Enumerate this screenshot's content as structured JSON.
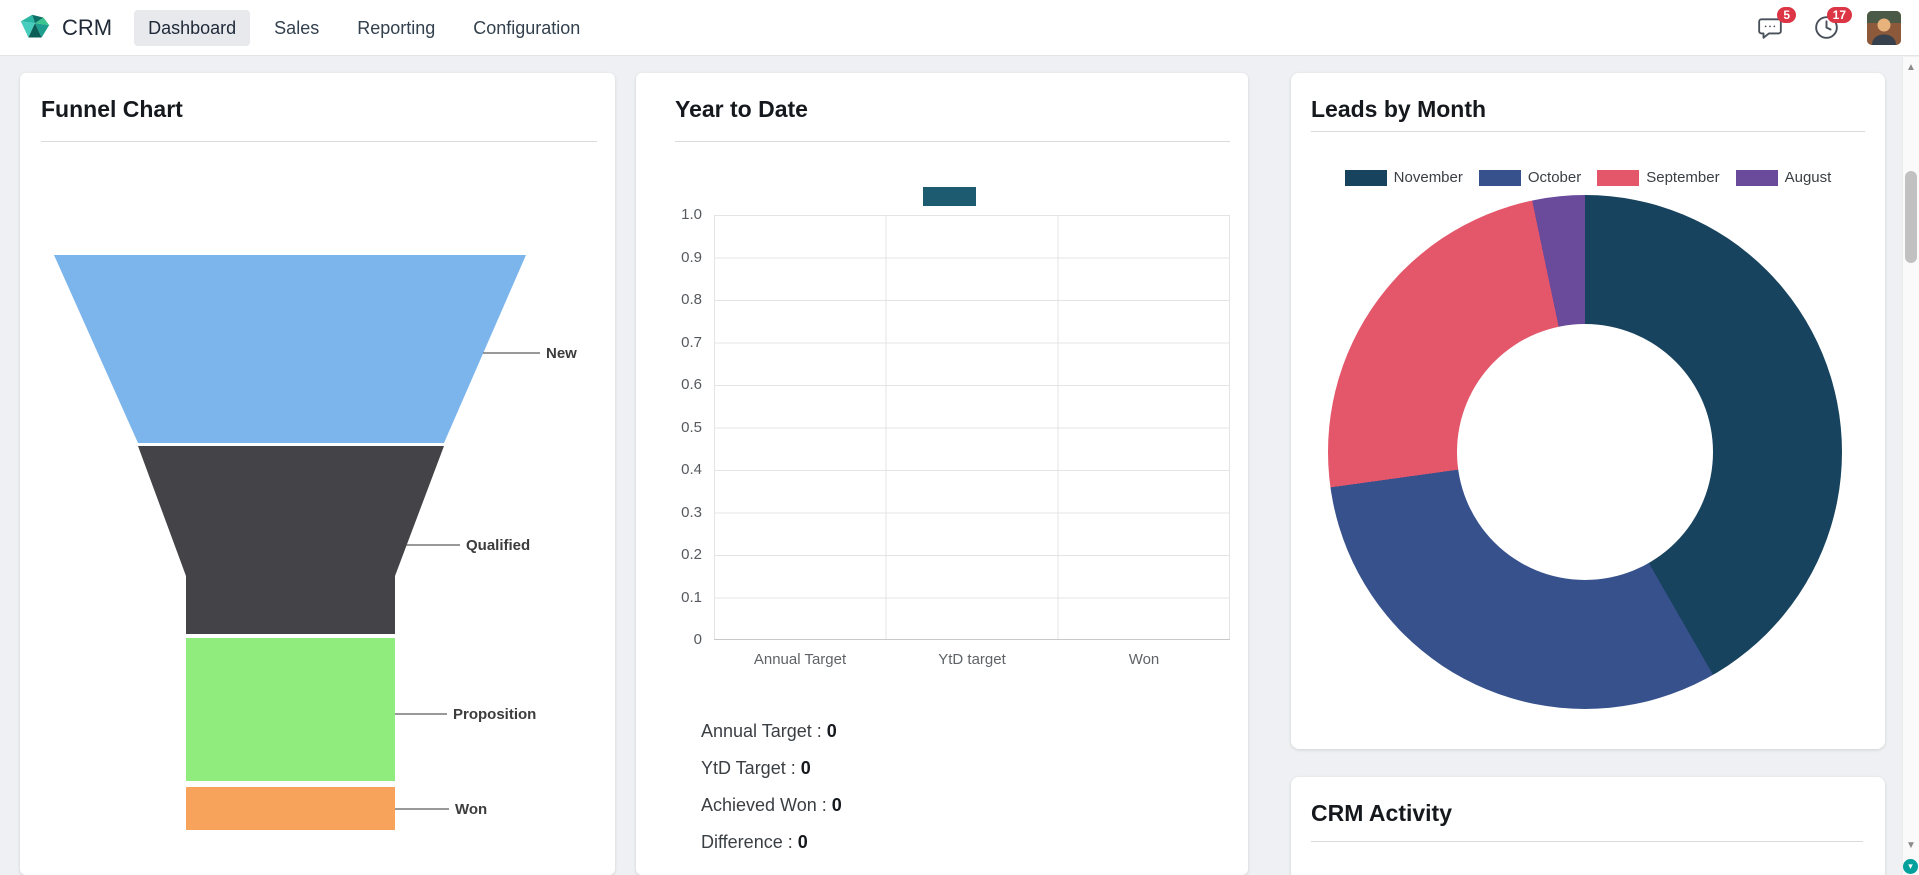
{
  "navbar": {
    "app_name": "CRM",
    "menu": [
      {
        "label": "Dashboard",
        "active": true
      },
      {
        "label": "Sales",
        "active": false
      },
      {
        "label": "Reporting",
        "active": false
      },
      {
        "label": "Configuration",
        "active": false
      }
    ],
    "icons": {
      "messages": {
        "icon": "chat-bubble",
        "badge": "5"
      },
      "activities": {
        "icon": "clock",
        "badge": "17"
      }
    }
  },
  "panels": {
    "funnel": {
      "title": "Funnel Chart"
    },
    "ytd": {
      "title": "Year to Date",
      "stats": [
        {
          "label": "Annual Target :",
          "value": "0"
        },
        {
          "label": "YtD Target :",
          "value": "0"
        },
        {
          "label": "Achieved Won :",
          "value": "0"
        },
        {
          "label": "Difference :",
          "value": "0"
        }
      ]
    },
    "leads_by_month": {
      "title": "Leads by Month"
    },
    "crm_activity": {
      "title": "CRM Activity"
    }
  },
  "chart_data": [
    {
      "type": "funnel",
      "title": "Funnel Chart",
      "stages": [
        "New",
        "Qualified",
        "Proposition",
        "Won"
      ],
      "colors": [
        "#7cb5ec",
        "#434348",
        "#90ed7d",
        "#f7a35c"
      ]
    },
    {
      "type": "bar",
      "title": "Year to Date",
      "categories": [
        "Annual Target",
        "YtD target",
        "Won"
      ],
      "values": [
        0,
        0,
        0
      ],
      "ylim": [
        0,
        1.0
      ],
      "yticks": [
        "1.0",
        "0.9",
        "0.8",
        "0.7",
        "0.6",
        "0.5",
        "0.4",
        "0.3",
        "0.2",
        "0.1",
        "0"
      ],
      "grid": true,
      "legend_position": "top",
      "legend_color": "#1d5b70"
    },
    {
      "type": "donut",
      "title": "Leads by Month",
      "labels": [
        "November",
        "October",
        "September",
        "August"
      ],
      "values": [
        41.7,
        31.1,
        23.9,
        3.3
      ],
      "colors": [
        "#17435e",
        "#36518c",
        "#e4566a",
        "#6a4b9b"
      ],
      "legend_position": "top",
      "hole_ratio": 0.5
    }
  ],
  "scrollbar": {
    "up_glyph": "▲",
    "down_glyph": "▼",
    "corner_glyph": "▾"
  }
}
